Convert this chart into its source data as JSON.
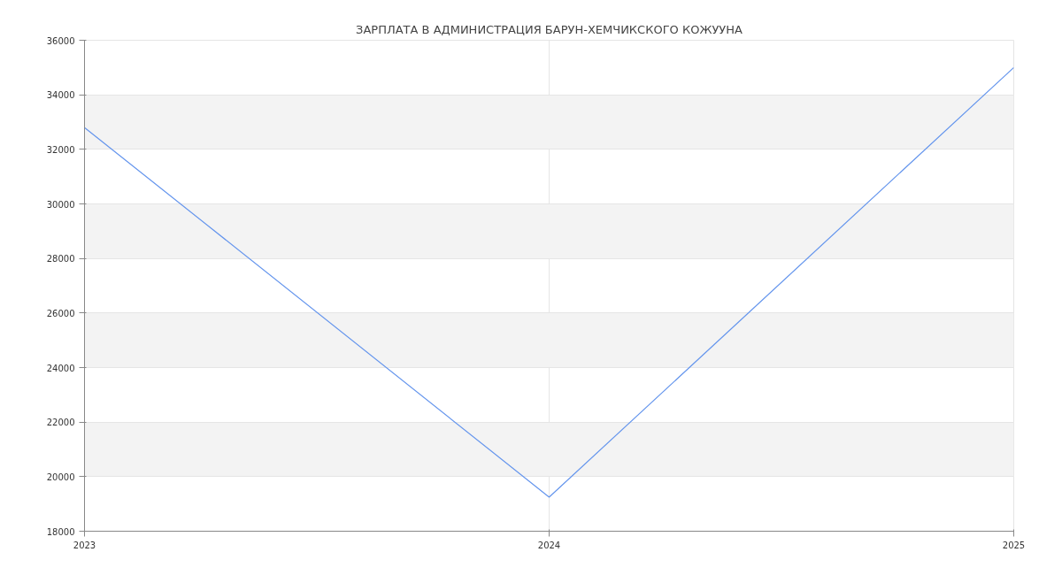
{
  "chart_data": {
    "type": "line",
    "title": "ЗАРПЛАТА В АДМИНИСТРАЦИЯ БАРУН-ХЕМЧИКСКОГО КОЖУУНА",
    "x": [
      2023,
      2024,
      2025
    ],
    "series": [
      {
        "color": "#6495ed",
        "values": [
          32800,
          19250,
          35000
        ]
      }
    ],
    "xlim": [
      2023,
      2025
    ],
    "xticks": [
      2023,
      2024,
      2025
    ],
    "ylim": [
      18000,
      36000
    ],
    "yticks": [
      18000,
      20000,
      22000,
      24000,
      26000,
      28000,
      30000,
      32000,
      34000,
      36000
    ],
    "grid": true
  }
}
